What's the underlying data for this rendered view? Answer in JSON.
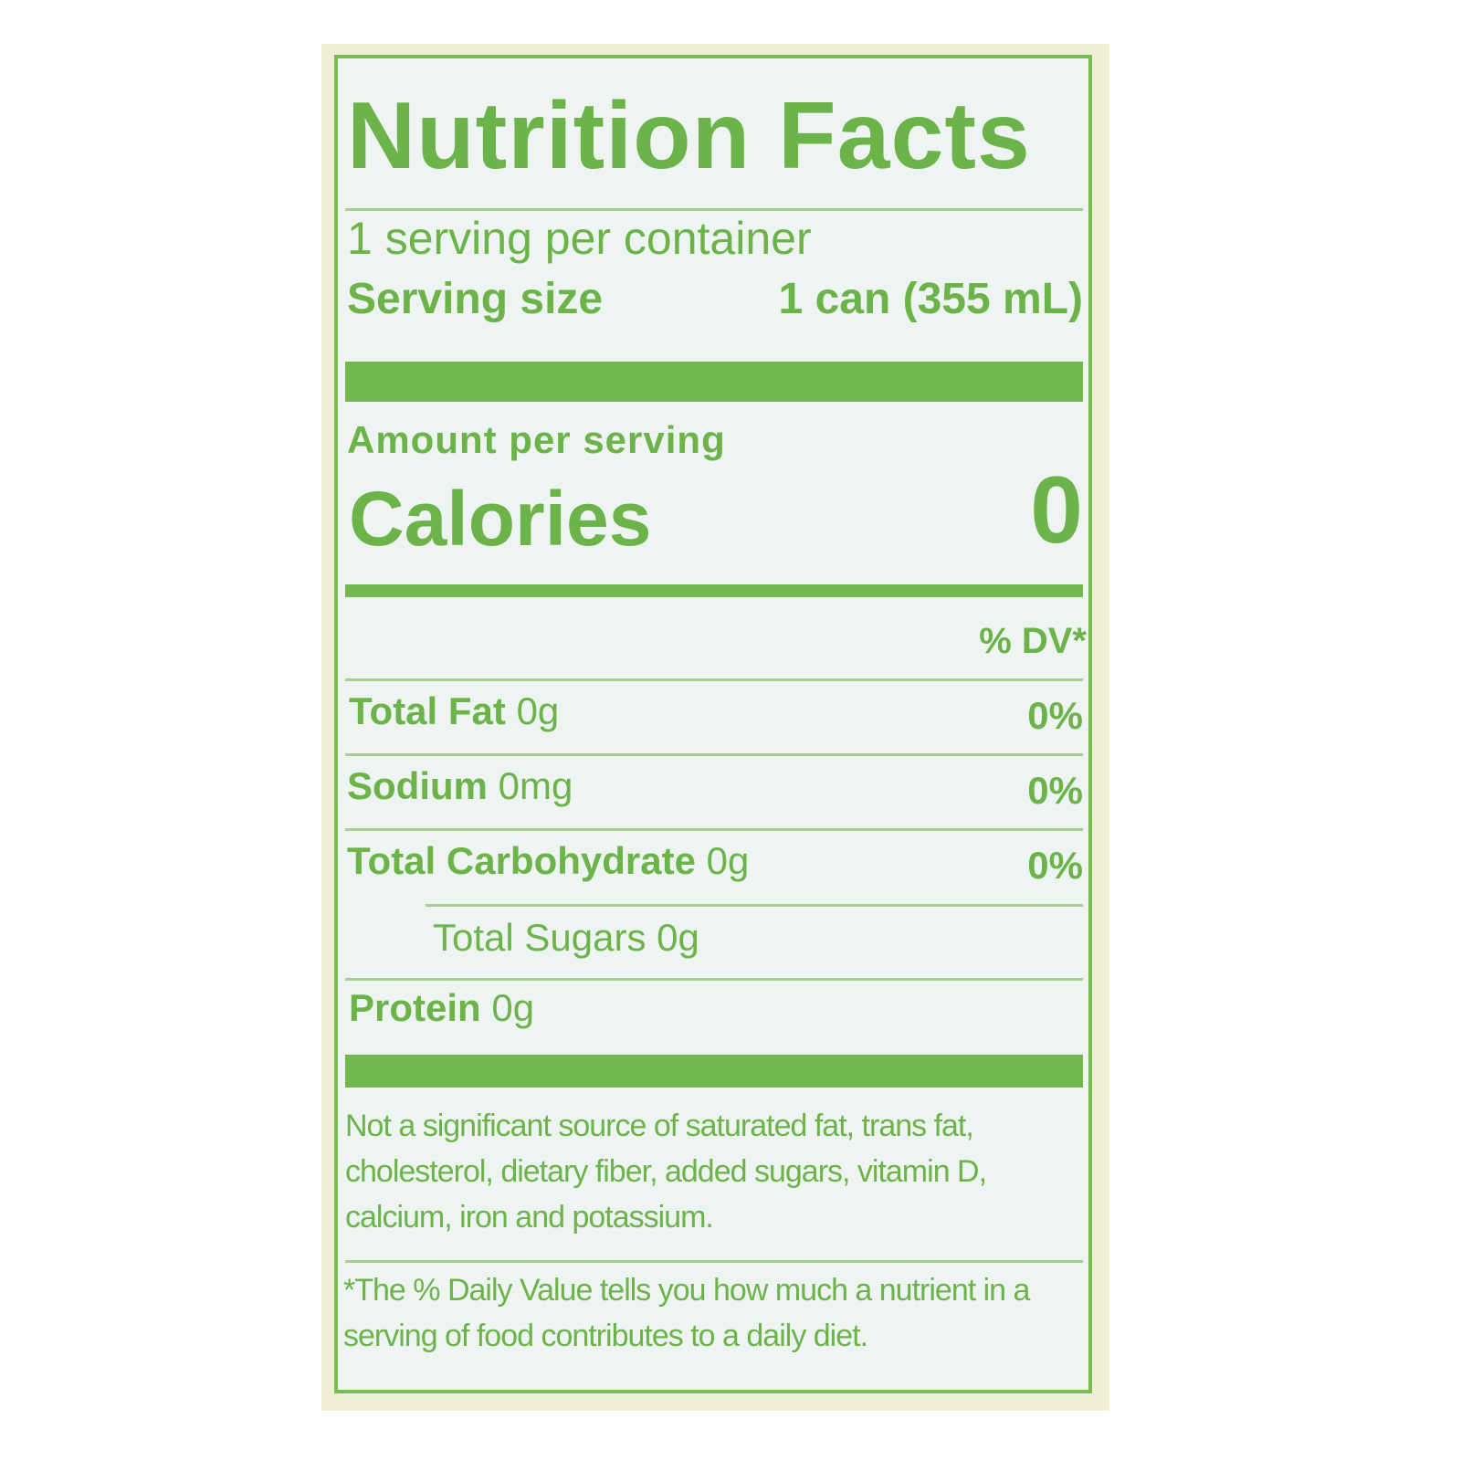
{
  "header": {
    "title": "Nutrition Facts",
    "servings": "1 serving per container",
    "serving_size_label": "Serving size",
    "serving_size_value": "1 can (355 mL)"
  },
  "calories": {
    "heading": "Amount per serving",
    "label": "Calories",
    "value": "0"
  },
  "dv_header": "% DV*",
  "nutrients": [
    {
      "name": "Total Fat",
      "amount": "0g",
      "dv": "0%"
    },
    {
      "name": "Sodium",
      "amount": "0mg",
      "dv": "0%"
    },
    {
      "name": "Total Carbohydrate",
      "amount": "0g",
      "dv": "0%"
    },
    {
      "name": "Total Sugars",
      "amount": "0g"
    },
    {
      "name": "Protein",
      "amount": "0g"
    }
  ],
  "footnotes": [
    "Not a significant source of saturated fat, trans fat, cholesterol, dietary fiber, added sugars, vitamin D, calcium, iron and potassium.",
    "*The % Daily Value tells you how much a nutrient in a serving of food contributes to a daily diet."
  ]
}
